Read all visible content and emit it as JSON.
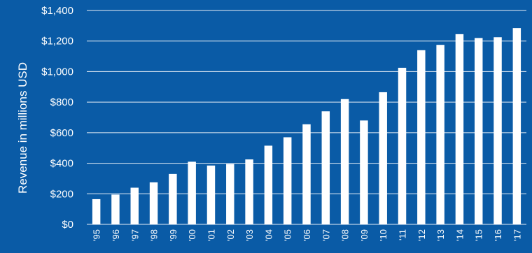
{
  "chart_data": {
    "type": "bar",
    "title": "",
    "xlabel": "",
    "ylabel": "Revenue in millions USD",
    "ylim": [
      0,
      1400
    ],
    "grid": true,
    "y_ticks": [
      "$0",
      "$200",
      "$400",
      "$600",
      "$800",
      "$1,000",
      "$1,200",
      "$1,400"
    ],
    "categories": [
      "'95",
      "'96",
      "'97",
      "'98",
      "'99",
      "'00",
      "'01",
      "'02",
      "'03",
      "'04",
      "'05",
      "'06",
      "'07",
      "'08",
      "'09",
      "'10",
      "'11",
      "'12",
      "'13",
      "'14",
      "'15",
      "'16",
      "'17"
    ],
    "values": [
      165,
      195,
      240,
      275,
      330,
      410,
      385,
      395,
      425,
      515,
      570,
      655,
      740,
      820,
      680,
      865,
      1025,
      1140,
      1175,
      1245,
      1220,
      1225,
      1285
    ],
    "colors": {
      "background": "#0a5ba6",
      "bars": "#ffffff",
      "text": "#ffffff"
    }
  }
}
